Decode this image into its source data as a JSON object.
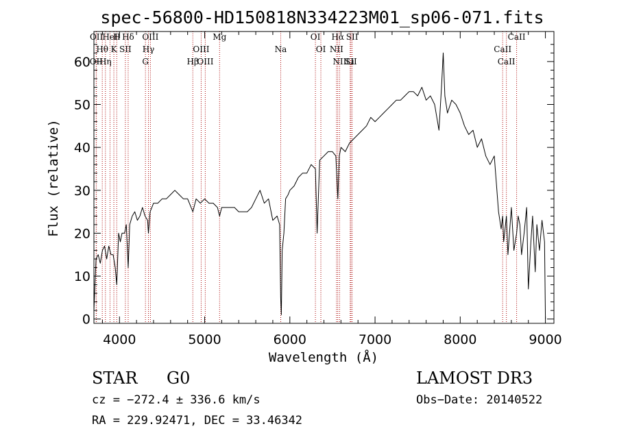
{
  "chart_data": {
    "type": "line",
    "title": "spec-56800-HD150818N334223M01_sp06-071.fits",
    "xlabel": "Wavelength (Å)",
    "ylabel": "Flux (relative)",
    "xlim": [
      3700,
      9100
    ],
    "ylim": [
      -1,
      67
    ],
    "x_ticks": [
      4000,
      5000,
      6000,
      7000,
      8000,
      9000
    ],
    "x_tick_labels": [
      "4000",
      "5000",
      "6000",
      "7000",
      "8000",
      "9000"
    ],
    "y_ticks": [
      0,
      10,
      20,
      30,
      40,
      50,
      60
    ],
    "y_tick_labels": [
      "0",
      "10",
      "20",
      "30",
      "40",
      "50",
      "60"
    ],
    "grid": false,
    "series": [
      {
        "name": "",
        "color": "#000000",
        "x": [
          3700,
          3725,
          3750,
          3775,
          3800,
          3825,
          3850,
          3875,
          3900,
          3925,
          3950,
          3968,
          3990,
          4010,
          4030,
          4060,
          4080,
          4102,
          4120,
          4150,
          4180,
          4210,
          4240,
          4270,
          4300,
          4330,
          4340,
          4360,
          4400,
          4450,
          4500,
          4550,
          4600,
          4650,
          4700,
          4750,
          4800,
          4861,
          4900,
          4950,
          5000,
          5050,
          5100,
          5150,
          5175,
          5200,
          5250,
          5300,
          5350,
          5400,
          5450,
          5500,
          5550,
          5600,
          5650,
          5700,
          5750,
          5800,
          5850,
          5880,
          5892,
          5900,
          5910,
          5930,
          5950,
          5980,
          6000,
          6050,
          6100,
          6150,
          6200,
          6250,
          6300,
          6320,
          6350,
          6400,
          6450,
          6500,
          6540,
          6563,
          6580,
          6600,
          6650,
          6700,
          6750,
          6800,
          6850,
          6900,
          6950,
          7000,
          7050,
          7100,
          7150,
          7200,
          7250,
          7300,
          7350,
          7400,
          7450,
          7500,
          7550,
          7600,
          7650,
          7700,
          7750,
          7780,
          7800,
          7820,
          7850,
          7900,
          7950,
          8000,
          8050,
          8100,
          8150,
          8200,
          8250,
          8300,
          8350,
          8400,
          8450,
          8480,
          8498,
          8510,
          8542,
          8560,
          8600,
          8630,
          8662,
          8680,
          8700,
          8720,
          8750,
          8780,
          8800,
          8830,
          8850,
          8880,
          8900,
          8930,
          8960,
          8990,
          9000
        ],
        "y": [
          2,
          14,
          15,
          13,
          16,
          17,
          14,
          17,
          15,
          15,
          12,
          8,
          20,
          18,
          20,
          20,
          22,
          12,
          22,
          24,
          25,
          23,
          24,
          26,
          24,
          23,
          20,
          25,
          27,
          27,
          28,
          28,
          29,
          30,
          29,
          28,
          28,
          25,
          28,
          27,
          28,
          27,
          27,
          26,
          24,
          26,
          26,
          26,
          26,
          25,
          25,
          25,
          26,
          28,
          30,
          27,
          28,
          23,
          24,
          22,
          5,
          1,
          16,
          20,
          28,
          29,
          30,
          31,
          33,
          34,
          34,
          36,
          35,
          20,
          37,
          38,
          39,
          39,
          38,
          28,
          38,
          40,
          39,
          41,
          42,
          43,
          44,
          45,
          47,
          46,
          47,
          48,
          49,
          50,
          51,
          51,
          52,
          53,
          53,
          52,
          54,
          51,
          52,
          50,
          44,
          54,
          62,
          52,
          48,
          51,
          50,
          48,
          45,
          43,
          44,
          40,
          42,
          38,
          36,
          38,
          25,
          21,
          24,
          18,
          24,
          15,
          26,
          16,
          20,
          24,
          22,
          15,
          20,
          26,
          7,
          18,
          24,
          11,
          22,
          16,
          23,
          18,
          0
        ]
      }
    ],
    "spectral_lines": [
      {
        "label": "Hδ",
        "x": 4102
      },
      {
        "label": "Hγ",
        "x": 4340
      },
      {
        "label": "Hβ",
        "x": 4861
      },
      {
        "label": "Hα",
        "x": 6563
      },
      {
        "label": "Hθ",
        "x": 3798
      },
      {
        "label": "Hη",
        "x": 3835
      },
      {
        "label": "H",
        "x": 3968
      },
      {
        "label": "K",
        "x": 3934
      },
      {
        "label": "G",
        "x": 4305
      },
      {
        "label": "Mg",
        "x": 5175
      },
      {
        "label": "Na",
        "x": 5893
      },
      {
        "label": "Li",
        "x": 6708
      },
      {
        "label": "OIII",
        "x": 4363
      },
      {
        "label": "OIII",
        "x": 4959
      },
      {
        "label": "OIII",
        "x": 5007
      },
      {
        "label": "OI",
        "x": 6300
      },
      {
        "label": "OI",
        "x": 6364
      },
      {
        "label": "OII",
        "x": 3727
      },
      {
        "label": "OII",
        "x": 3729
      },
      {
        "label": "SII",
        "x": 4069
      },
      {
        "label": "SII",
        "x": 6717
      },
      {
        "label": "SII",
        "x": 6731
      },
      {
        "label": "NII",
        "x": 6548
      },
      {
        "label": "NII",
        "x": 6584
      },
      {
        "label": "HeI",
        "x": 3889
      },
      {
        "label": "CaII",
        "x": 8498
      },
      {
        "label": "CaII",
        "x": 8542
      },
      {
        "label": "CaII",
        "x": 8662
      }
    ]
  },
  "info": {
    "object_class": "STAR",
    "subclass": "G0",
    "survey": "LAMOST DR3",
    "cz": "cz = −272.4 ± 336.6 km/s",
    "obs_date": "Obs−Date: 20140522",
    "radec": "RA = 229.92471, DEC =  33.46342"
  }
}
